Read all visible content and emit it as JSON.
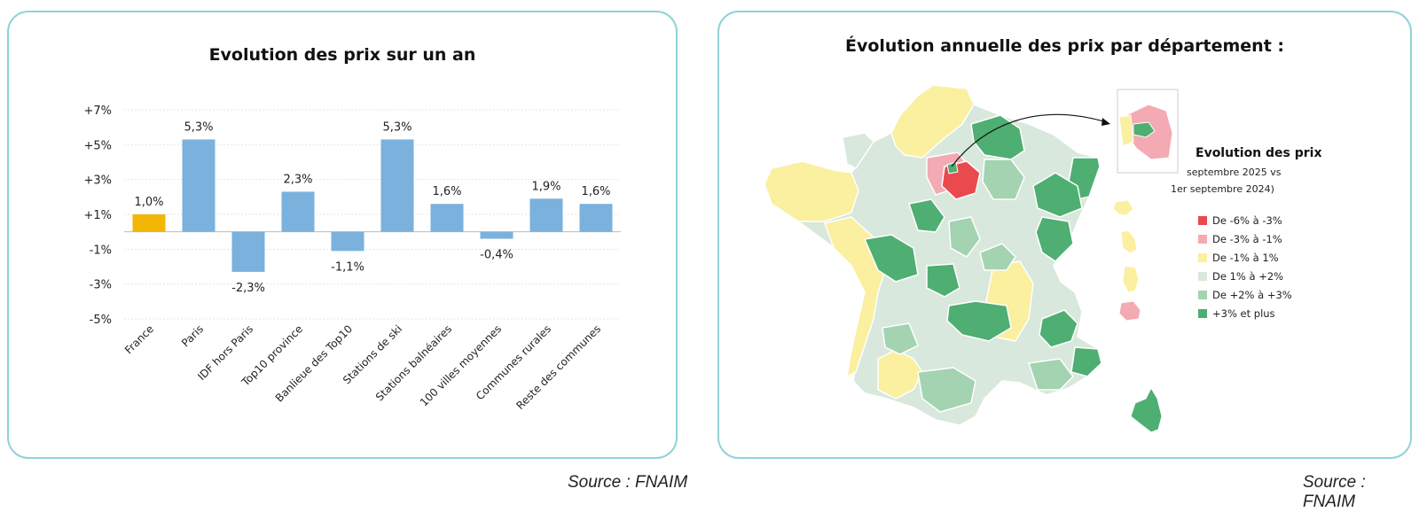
{
  "left_panel": {
    "title": "Evolution des prix sur un an",
    "source": "Source : FNAIM"
  },
  "chart_data": {
    "type": "bar",
    "title": "Evolution des prix sur un an",
    "categories": [
      "France",
      "Paris",
      "IDF hors Paris",
      "Top10 province",
      "Banlieue des Top10",
      "Stations de ski",
      "Stations balnéaires",
      "100 villes moyennes",
      "Communes rurales",
      "Reste des communes"
    ],
    "values": [
      1.0,
      5.3,
      -2.3,
      2.3,
      -1.1,
      5.3,
      1.6,
      -0.4,
      1.9,
      1.6
    ],
    "value_labels": [
      "1,0%",
      "5,3%",
      "-2,3%",
      "2,3%",
      "-1,1%",
      "5,3%",
      "1,6%",
      "-0,4%",
      "1,9%",
      "1,6%"
    ],
    "ylim": [
      -5,
      7
    ],
    "yticks": [
      7,
      5,
      3,
      1,
      -1,
      -3,
      -5
    ],
    "ytick_labels": [
      "+7%",
      "+5%",
      "+3%",
      "+1%",
      "-1%",
      "-3%",
      "-5%"
    ],
    "grid": true,
    "colors": {
      "highlight": "#f2b705",
      "default": "#7ab1dd"
    },
    "highlight_index": 0
  },
  "right_panel": {
    "title": "Évolution annuelle des prix par département :",
    "source": "Source : FNAIM",
    "legend": {
      "title": "Evolution des prix",
      "subtitle_lines": [
        "septembre 2025 vs",
        "1er septembre 2024)"
      ],
      "items": [
        {
          "label": "De -6% à -3%",
          "color": "#e84a4d"
        },
        {
          "label": "De -3% à -1%",
          "color": "#f4aab2"
        },
        {
          "label": "De -1% à 1%",
          "color": "#fbefa0"
        },
        {
          "label": "De 1% à +2%",
          "color": "#d8e8dc"
        },
        {
          "label": "De +2% à +3%",
          "color": "#a3d3b0"
        },
        {
          "label": "+3% et plus",
          "color": "#4fae72"
        }
      ]
    }
  }
}
